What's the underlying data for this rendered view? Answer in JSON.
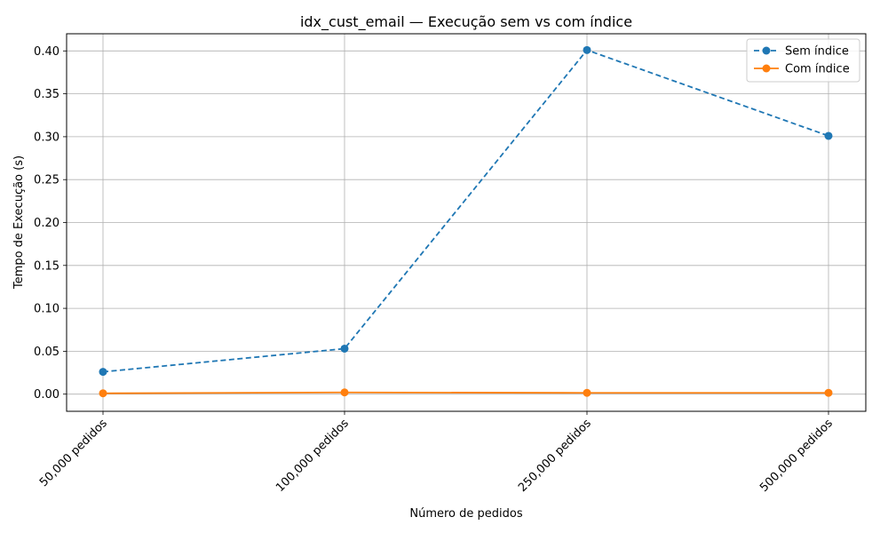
{
  "chart_data": {
    "type": "line",
    "title": "idx_cust_email — Execução sem vs com índice",
    "xlabel": "Número de pedidos",
    "ylabel": "Tempo de Execução (s)",
    "categories": [
      "50,000 pedidos",
      "100,000 pedidos",
      "250,000 pedidos",
      "500,000 pedidos"
    ],
    "ylim": [
      -0.02,
      0.42
    ],
    "yticks": [
      0.0,
      0.05,
      0.1,
      0.15,
      0.2,
      0.25,
      0.3,
      0.35,
      0.4
    ],
    "ytick_labels": [
      "0.00",
      "0.05",
      "0.10",
      "0.15",
      "0.20",
      "0.25",
      "0.30",
      "0.35",
      "0.40"
    ],
    "grid": true,
    "legend_position": "top-right",
    "series": [
      {
        "name": "Sem índice",
        "color": "#1f77b4",
        "linestyle": "dashed",
        "marker": "circle",
        "values": [
          0.026,
          0.053,
          0.401,
          0.301
        ]
      },
      {
        "name": "Com índice",
        "color": "#ff7f0e",
        "linestyle": "solid",
        "marker": "circle",
        "values": [
          0.001,
          0.002,
          0.0015,
          0.0015
        ]
      }
    ]
  }
}
